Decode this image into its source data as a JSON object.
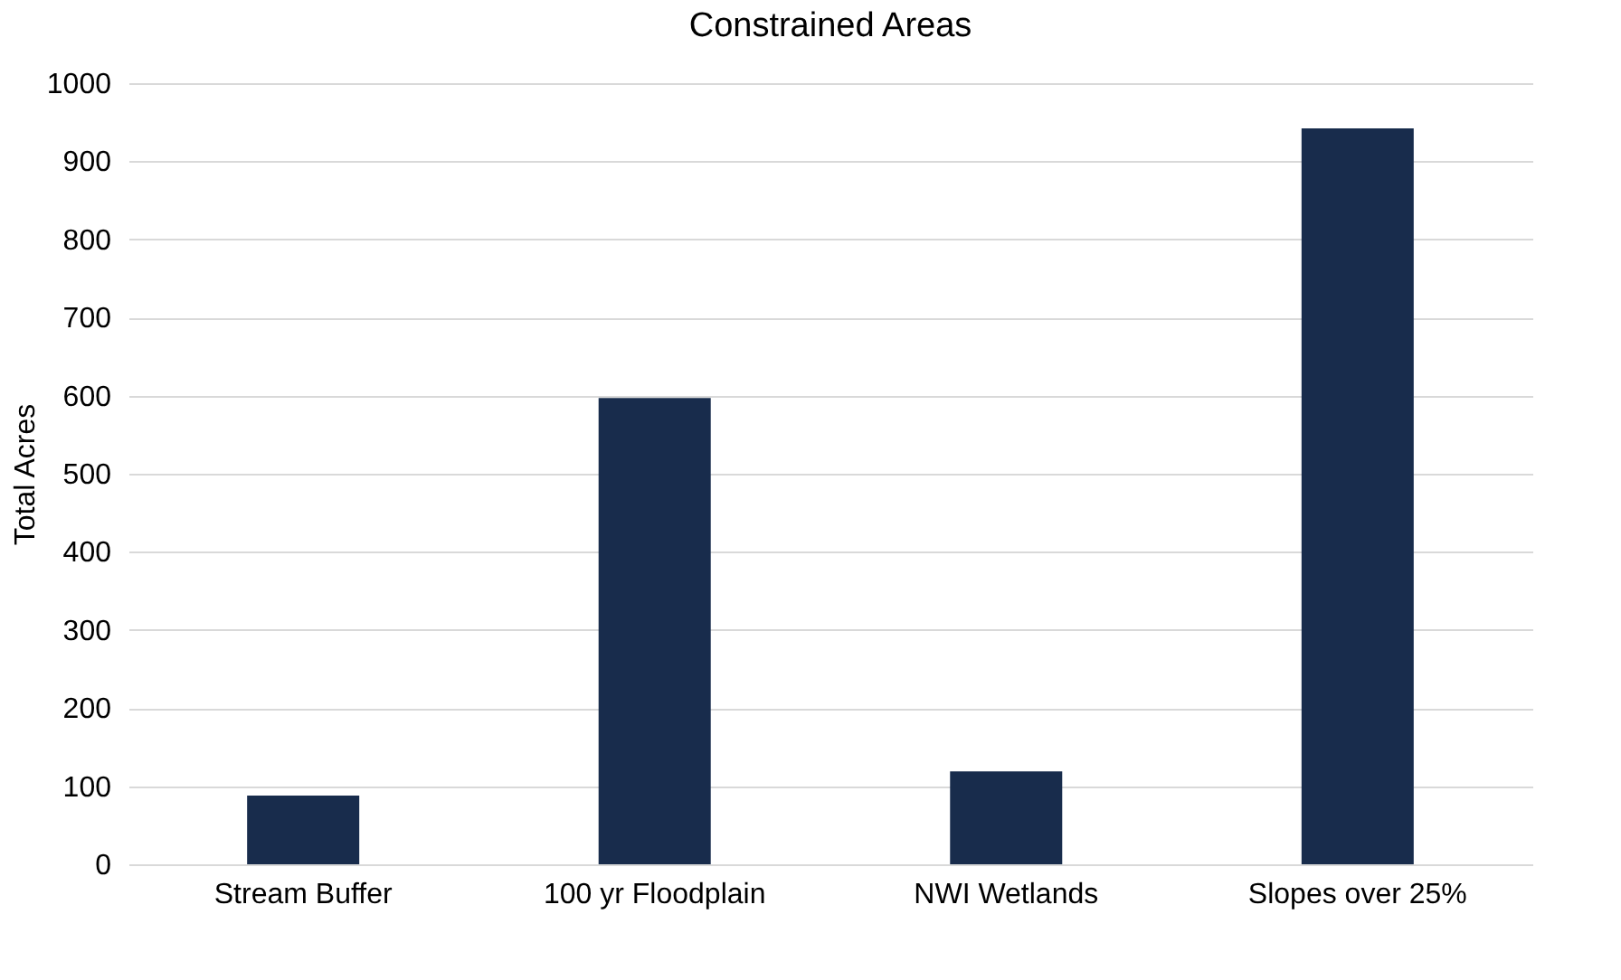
{
  "chart_data": {
    "type": "bar",
    "title": "Constrained Areas",
    "ylabel": "Total Acres",
    "categories": [
      "Stream Buffer",
      "100 yr Floodplain",
      "NWI Wetlands",
      "Slopes over 25%"
    ],
    "values": [
      88,
      597,
      119,
      942
    ],
    "color": "#182c4c",
    "ylim": [
      0,
      1000
    ],
    "yticks": [
      0,
      100,
      200,
      300,
      400,
      500,
      600,
      700,
      800,
      900,
      1000
    ],
    "grid": "y"
  }
}
